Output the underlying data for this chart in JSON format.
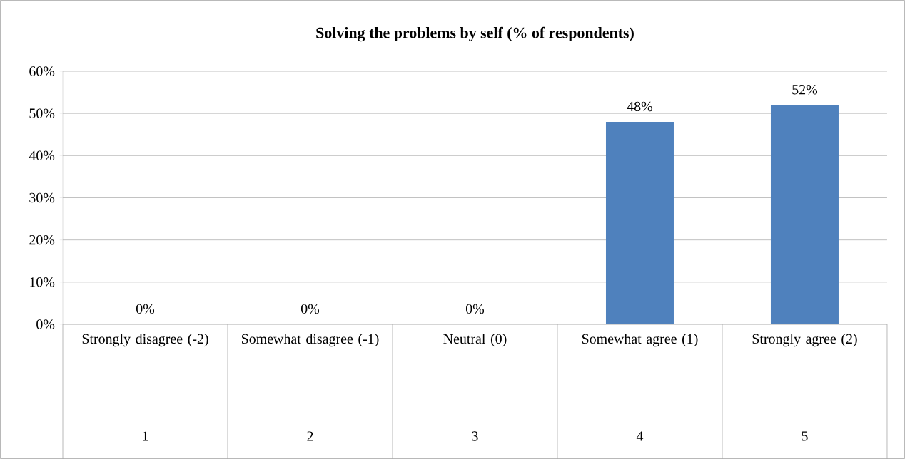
{
  "chart_data": {
    "type": "bar",
    "title": "Solving the problems  by self (% of respondents)",
    "categories": [
      "Strongly disagree (-2)",
      "Somewhat disagree (-1)",
      "Neutral (0)",
      "Somewhat agree (1)",
      "Strongly agree (2)"
    ],
    "values": [
      0,
      0,
      0,
      48,
      52
    ],
    "value_labels": [
      "0%",
      "0%",
      "0%",
      "48%",
      "52%"
    ],
    "color": "#4f81bd",
    "ylim": [
      0,
      60
    ],
    "yticks": [
      {
        "value": 0,
        "label": "0%"
      },
      {
        "value": 10,
        "label": "10%"
      },
      {
        "value": 20,
        "label": "20%"
      },
      {
        "value": 30,
        "label": "30%"
      },
      {
        "value": 40,
        "label": "40%"
      },
      {
        "value": 50,
        "label": "50%"
      },
      {
        "value": 60,
        "label": "60%"
      }
    ],
    "grid": "y",
    "annotations": [
      "1",
      "2",
      "3",
      "4",
      "5"
    ]
  }
}
